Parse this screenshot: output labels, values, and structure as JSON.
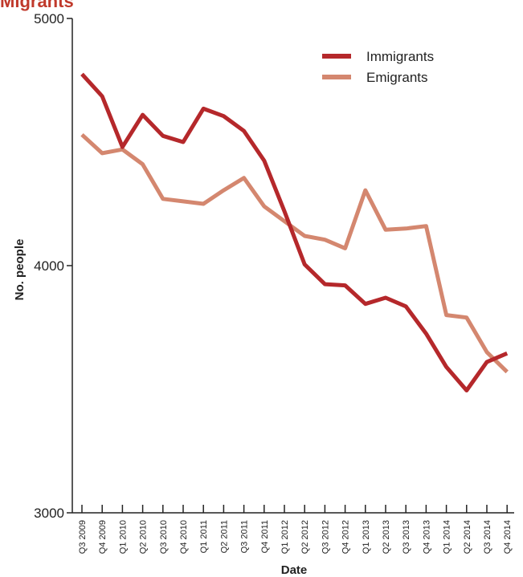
{
  "header": {
    "cut_title": "Migrants"
  },
  "chart_data": {
    "type": "line",
    "xlabel": "Date",
    "ylabel": "No. people",
    "ylim": [
      3000,
      5000
    ],
    "yticks": [
      3000,
      4000,
      5000
    ],
    "categories": [
      "Q3 2009",
      "Q4 2009",
      "Q1 2010",
      "Q2 2010",
      "Q3 2010",
      "Q4 2010",
      "Q1 2011",
      "Q2 2011",
      "Q3 2011",
      "Q4 2011",
      "Q1 2012",
      "Q2 2012",
      "Q3 2012",
      "Q4 2012",
      "Q1 2013",
      "Q2 2013",
      "Q3 2013",
      "Q4 2013",
      "Q1 2014",
      "Q2 2014",
      "Q3 2014",
      "Q4 2014"
    ],
    "series": [
      {
        "name": "Immigrants",
        "color": "#b5282b",
        "values": [
          4775,
          4685,
          4480,
          4610,
          4525,
          4500,
          4635,
          4605,
          4545,
          4425,
          4220,
          4005,
          3925,
          3920,
          3845,
          3870,
          3835,
          3725,
          3590,
          3495,
          3610,
          3645
        ]
      },
      {
        "name": "Emigrants",
        "color": "#d4876f",
        "values": [
          4530,
          4455,
          4470,
          4410,
          4270,
          4260,
          4250,
          4305,
          4355,
          4240,
          4180,
          4120,
          4105,
          4070,
          4305,
          4145,
          4150,
          4160,
          3800,
          3790,
          3650,
          3570
        ]
      }
    ],
    "grid": false,
    "legend_position": "top-right"
  }
}
